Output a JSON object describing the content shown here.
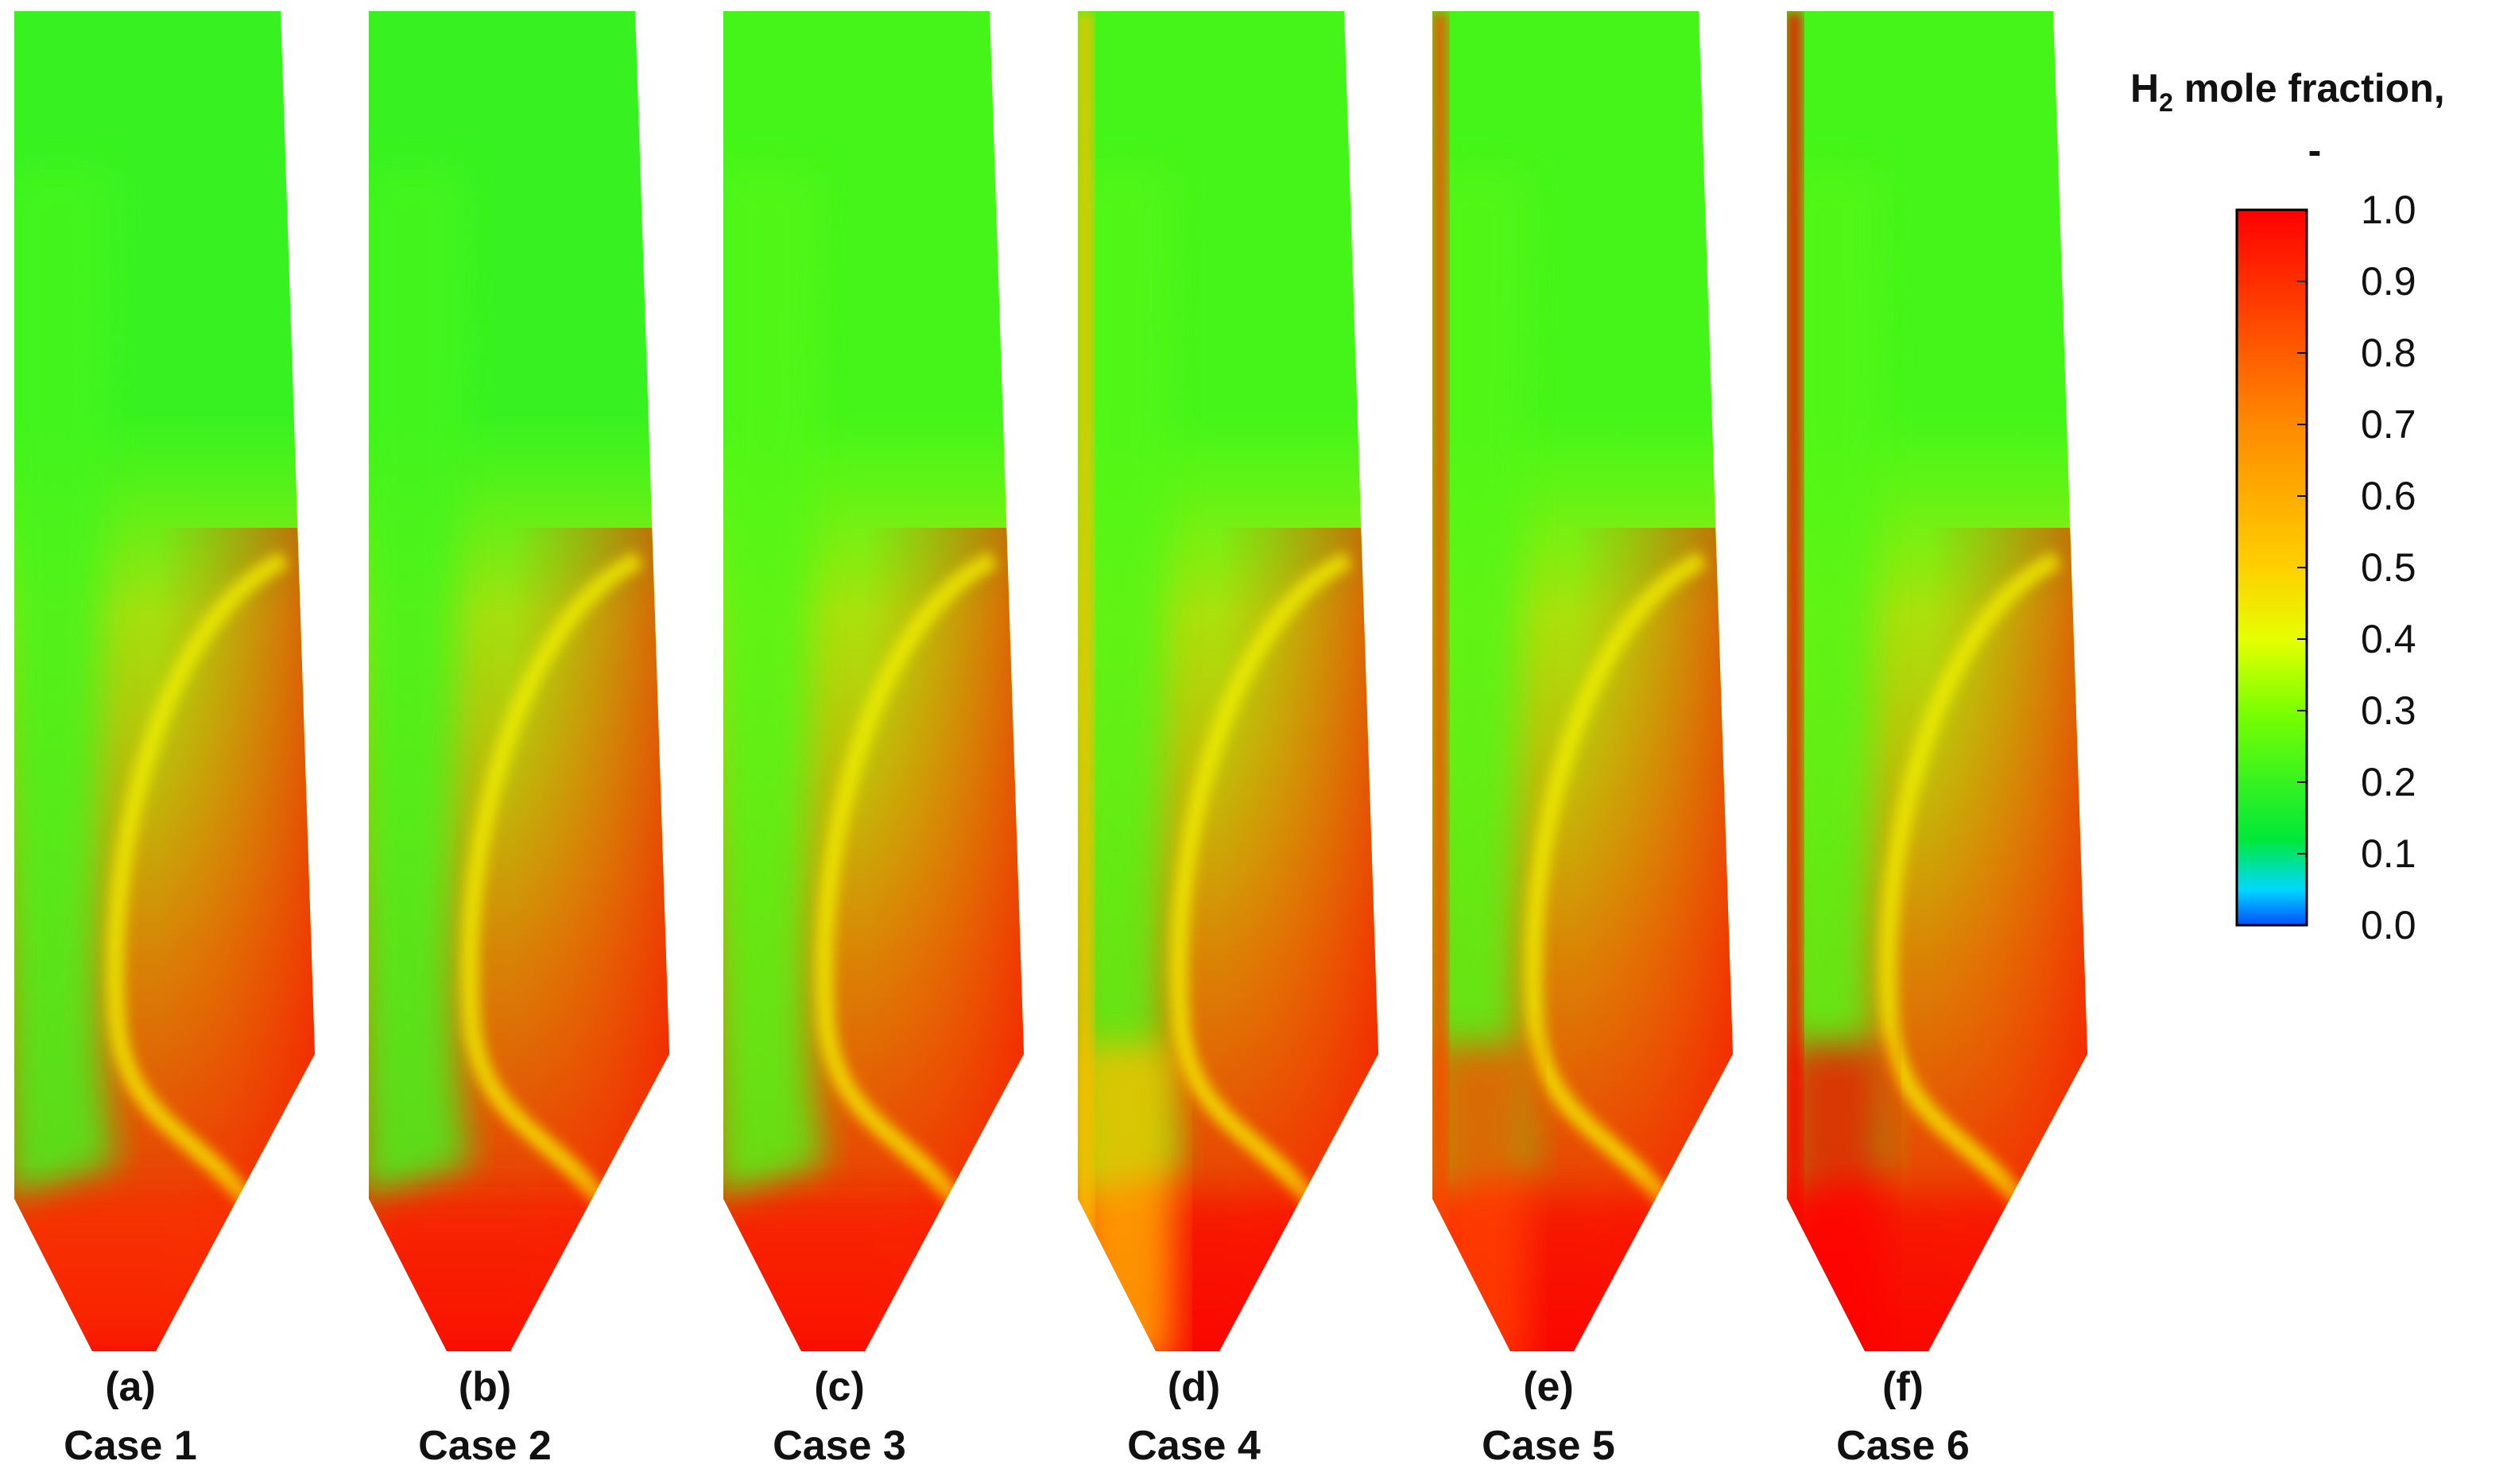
{
  "chart_data": {
    "type": "heatmap",
    "title": "H2 mole fraction, -",
    "title_main": "H",
    "title_sub": "2",
    "title_rest": " mole fraction,",
    "title_unit": "-",
    "colorbar": {
      "range": [
        0.0,
        1.0
      ],
      "ticks": [
        "1.0",
        "0.9",
        "0.8",
        "0.7",
        "0.6",
        "0.5",
        "0.4",
        "0.3",
        "0.2",
        "0.1",
        "0.0"
      ],
      "stops": [
        {
          "v": 0.0,
          "color": "#0050ff"
        },
        {
          "v": 0.05,
          "color": "#00d8ff"
        },
        {
          "v": 0.12,
          "color": "#00e83a"
        },
        {
          "v": 0.3,
          "color": "#7cff00"
        },
        {
          "v": 0.4,
          "color": "#e6ff00"
        },
        {
          "v": 0.5,
          "color": "#ffd000"
        },
        {
          "v": 0.7,
          "color": "#ff8a00"
        },
        {
          "v": 1.0,
          "color": "#ff0000"
        }
      ]
    },
    "panels": [
      {
        "letter": "(a)",
        "case": "Case 1",
        "wall_layer": 0.0,
        "bulk_top": 0.2,
        "bottom_value": 0.9
      },
      {
        "letter": "(b)",
        "case": "Case 2",
        "wall_layer": 0.0,
        "bulk_top": 0.2,
        "bottom_value": 0.95
      },
      {
        "letter": "(c)",
        "case": "Case 3",
        "wall_layer": 0.0,
        "bulk_top": 0.22,
        "bottom_value": 0.95
      },
      {
        "letter": "(d)",
        "case": "Case 4",
        "wall_layer": 0.55,
        "bulk_top": 0.22,
        "bottom_value": 1.0
      },
      {
        "letter": "(e)",
        "case": "Case 5",
        "wall_layer": 0.85,
        "bulk_top": 0.22,
        "bottom_value": 1.0
      },
      {
        "letter": "(f)",
        "case": "Case 6",
        "wall_layer": 1.0,
        "bulk_top": 0.22,
        "bottom_value": 1.0
      }
    ]
  }
}
